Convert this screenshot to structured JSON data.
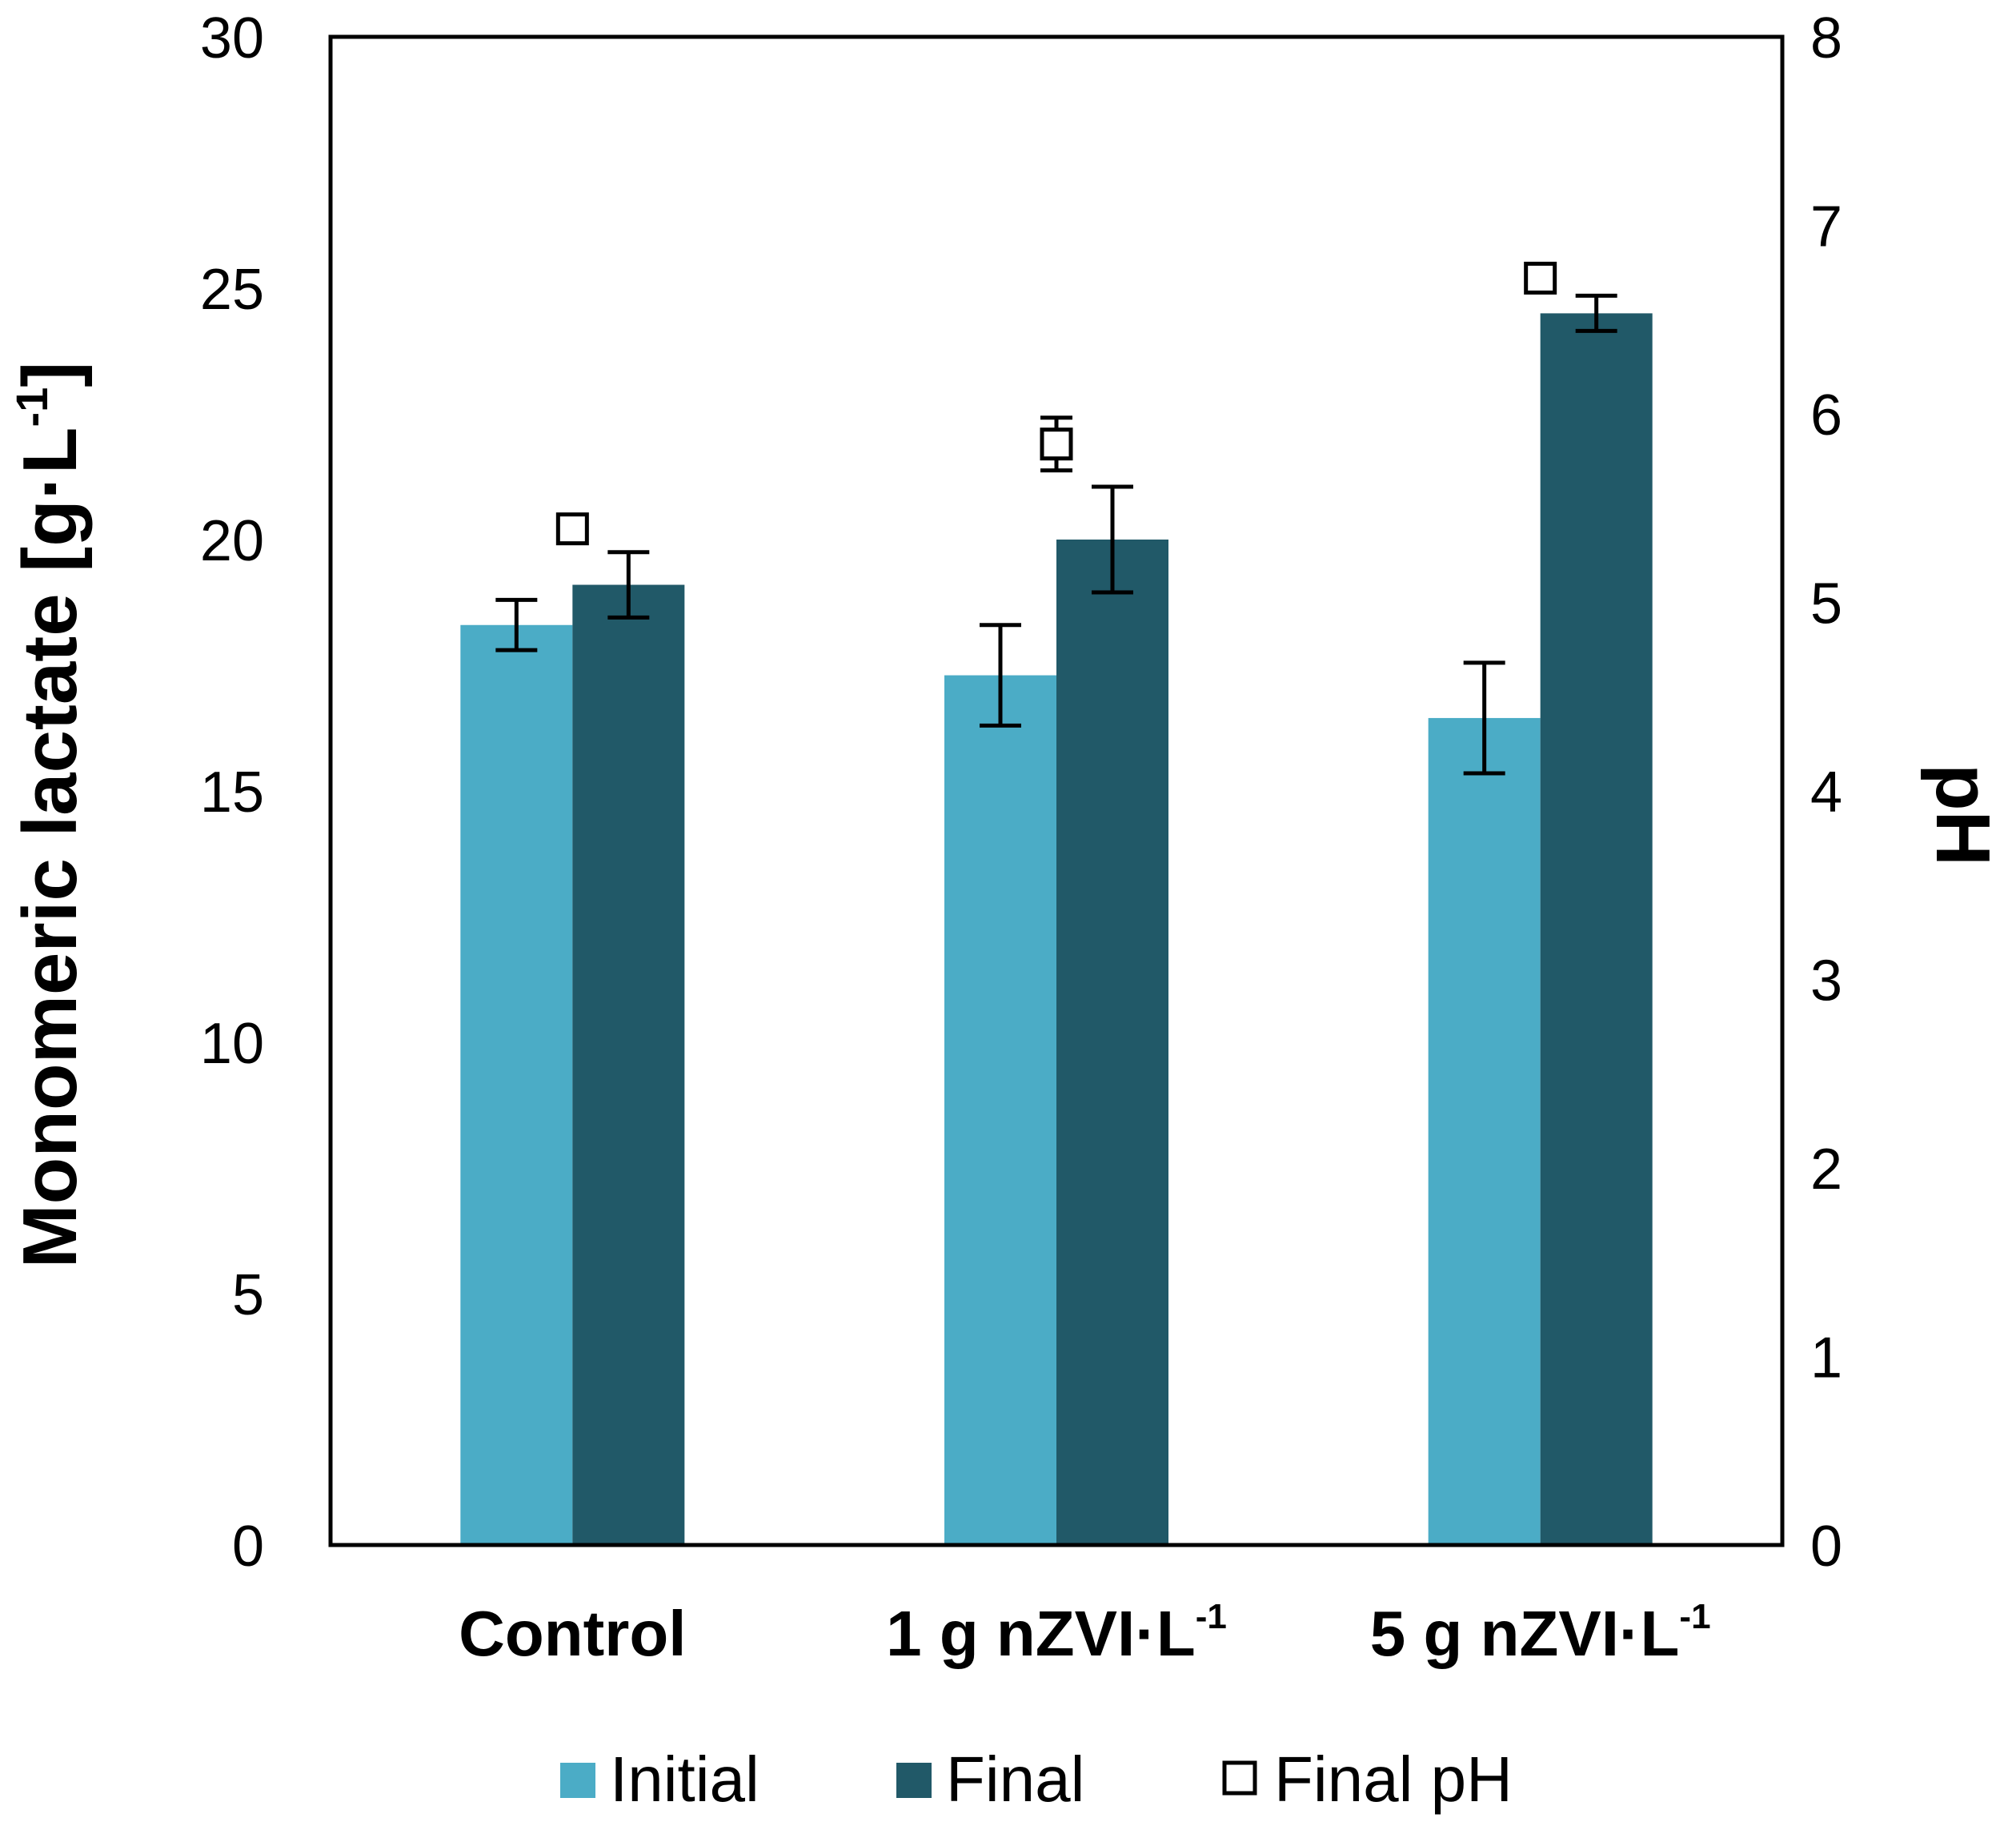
{
  "chart_data": {
    "type": "bar",
    "title": "",
    "ylabel": "Monomeric lactate [g·L",
    "ylabel_sup": "-1",
    "ylabel_close": "]",
    "y2label": "pH",
    "xlabel": "",
    "ylim": [
      0,
      30
    ],
    "y2lim": [
      0,
      8
    ],
    "yticks": [
      "0",
      "5",
      "10",
      "15",
      "20",
      "25",
      "30"
    ],
    "y2ticks": [
      "0",
      "1",
      "2",
      "3",
      "4",
      "5",
      "6",
      "7",
      "8"
    ],
    "categories": [
      {
        "main": "Control",
        "sup": ""
      },
      {
        "main": "1 g nZVI·L",
        "sup": "-1"
      },
      {
        "main": "5 g nZVI·L",
        "sup": "-1"
      }
    ],
    "series": [
      {
        "name": "Initial",
        "color": "#4bacc6",
        "values": [
          18.3,
          17.3,
          16.45
        ],
        "errors": [
          0.5,
          1.0,
          1.1
        ]
      },
      {
        "name": "Final",
        "color": "#215968",
        "values": [
          19.1,
          20.0,
          24.5
        ],
        "errors": [
          0.65,
          1.05,
          0.35
        ]
      }
    ],
    "ph_series": {
      "name": "Final pH",
      "axis": "right",
      "marker": "open-square",
      "values": [
        5.39,
        5.84,
        6.72
      ],
      "errors": [
        0,
        0.14,
        0
      ]
    },
    "legend_position": "bottom",
    "grid": false
  }
}
